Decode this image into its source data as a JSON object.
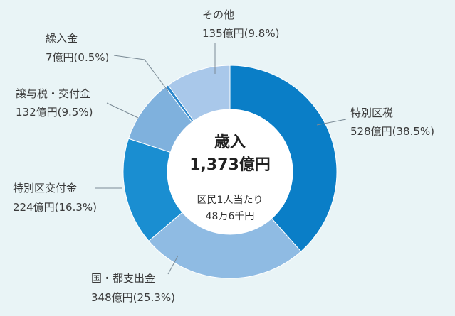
{
  "chart_data": {
    "type": "pie",
    "variant": "donut",
    "title": "歳入",
    "total_label": "1,373億円",
    "per_capita_label": "区民1人当たり",
    "per_capita_value": "48万6千円",
    "series": [
      {
        "name": "特別区税",
        "value": 528,
        "value_label": "528億円(38.5%)",
        "percent": 38.5,
        "color": "#0a7ec7"
      },
      {
        "name": "国・都支出金",
        "value": 348,
        "value_label": "348億円(25.3%)",
        "percent": 25.3,
        "color": "#8fbbe3"
      },
      {
        "name": "特別区交付金",
        "value": 224,
        "value_label": "224億円(16.3%)",
        "percent": 16.3,
        "color": "#1a8ed1"
      },
      {
        "name": "譲与税・交付金",
        "value": 132,
        "value_label": "132億円(9.5%)",
        "percent": 9.5,
        "color": "#7fb1dd"
      },
      {
        "name": "繰入金",
        "value": 7,
        "value_label": "7億円(0.5%)",
        "percent": 0.5,
        "color": "#2b87cc"
      },
      {
        "name": "その他",
        "value": 135,
        "value_label": "135億円(9.8%)",
        "percent": 9.8,
        "color": "#a9c8ea"
      }
    ]
  }
}
